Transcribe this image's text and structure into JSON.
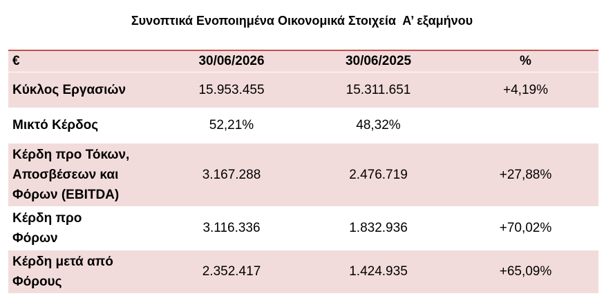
{
  "header": {
    "title": "Συνοπτικά Ενοποιημένα Οικονομικά Στοιχεία  Α’ εξαμήνου"
  },
  "table": {
    "columns": [
      "€",
      "30/06/2026",
      "30/06/2025",
      "%"
    ],
    "rows": [
      [
        "Κύκλος Εργασιών",
        "15.953.455",
        "15.311.651",
        "+4,19%"
      ],
      [
        "Μικτό Κέρδος",
        "52,21%",
        "48,32%"
      ],
      [
        "Κέρδη προ Τόκων,\nΑποσβέσεων και\nΦόρων (EBITDA)",
        "3.167.288",
        "2.476.719",
        "+27,88%"
      ],
      [
        "Κέρδη προ\nΦόρων",
        "3.116.336",
        "1.832.936",
        "+70,02%"
      ],
      [
        "Κέρδη μετά από\nΦόρους",
        "2.352.417",
        "1.424.935",
        "+65,09%"
      ]
    ]
  }
}
